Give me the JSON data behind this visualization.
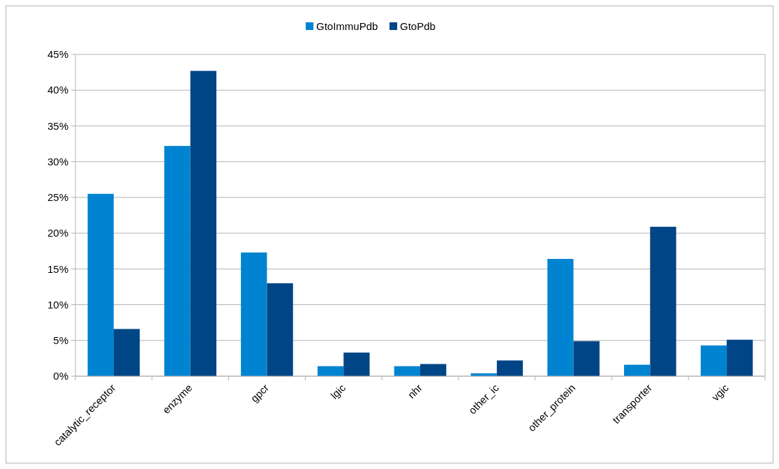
{
  "chart_data": {
    "type": "bar",
    "categories": [
      "catalytic_receptor",
      "enzyme",
      "gpcr",
      "lgic",
      "nhr",
      "other_ic",
      "other_protein",
      "transporter",
      "vgic"
    ],
    "series": [
      {
        "name": "GtoImmuPdb",
        "color": "#0084d1",
        "values": [
          25.5,
          32.2,
          17.3,
          1.4,
          1.4,
          0.4,
          16.4,
          1.6,
          4.3
        ]
      },
      {
        "name": "GtoPdb",
        "color": "#004586",
        "values": [
          6.6,
          42.7,
          13.0,
          3.3,
          1.7,
          2.2,
          4.9,
          20.9,
          5.1
        ]
      }
    ],
    "ylim": [
      0,
      45
    ],
    "yticks": [
      {
        "value": 0,
        "label": "0%"
      },
      {
        "value": 5,
        "label": "5%"
      },
      {
        "value": 10,
        "label": "10%"
      },
      {
        "value": 15,
        "label": "15%"
      },
      {
        "value": 20,
        "label": "20%"
      },
      {
        "value": 25,
        "label": "25%"
      },
      {
        "value": 30,
        "label": "30%"
      },
      {
        "value": 35,
        "label": "35%"
      },
      {
        "value": 40,
        "label": "40%"
      },
      {
        "value": 45,
        "label": "45%"
      }
    ],
    "grid": "y",
    "legend": "top"
  }
}
